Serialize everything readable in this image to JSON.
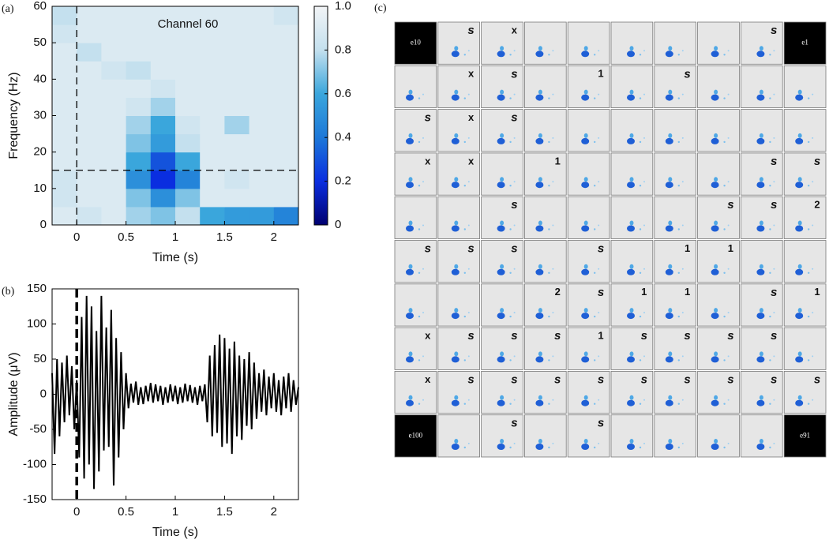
{
  "chart_data": [
    {
      "type": "heatmap",
      "panel_label": "(a)",
      "annotation": "Channel 60",
      "xlabel": "Time (s)",
      "ylabel": "Frequency (Hz)",
      "xlim": [
        -0.25,
        2.25
      ],
      "ylim": [
        0,
        60
      ],
      "xticks": [
        0,
        0.5,
        1,
        1.5,
        2
      ],
      "yticks": [
        0,
        10,
        20,
        30,
        40,
        50,
        60
      ],
      "vline": 0,
      "hline": 15,
      "x": [
        -0.125,
        0.125,
        0.375,
        0.625,
        0.875,
        1.125,
        1.375,
        1.625,
        1.875,
        2.125
      ],
      "y": [
        2.5,
        7.5,
        12.5,
        17.5,
        22.5,
        27.5,
        32.5,
        37.5,
        42.5,
        47.5,
        52.5,
        57.5
      ],
      "z": [
        [
          0.9,
          0.85,
          0.9,
          0.75,
          0.7,
          0.8,
          0.6,
          0.55,
          0.55,
          0.45
        ],
        [
          0.85,
          0.9,
          0.9,
          0.7,
          0.5,
          0.7,
          0.9,
          0.9,
          0.9,
          0.9
        ],
        [
          0.85,
          0.9,
          0.9,
          0.5,
          0.2,
          0.45,
          0.9,
          0.85,
          0.9,
          0.9
        ],
        [
          0.9,
          0.9,
          0.9,
          0.6,
          0.3,
          0.6,
          0.9,
          0.9,
          0.9,
          0.9
        ],
        [
          0.9,
          0.9,
          0.9,
          0.7,
          0.55,
          0.8,
          0.9,
          0.9,
          0.9,
          0.9
        ],
        [
          0.9,
          0.9,
          0.9,
          0.75,
          0.6,
          0.85,
          0.9,
          0.75,
          0.9,
          0.9
        ],
        [
          0.9,
          0.9,
          0.9,
          0.85,
          0.75,
          0.9,
          0.9,
          0.9,
          0.9,
          0.9
        ],
        [
          0.9,
          0.9,
          0.9,
          0.9,
          0.85,
          0.9,
          0.9,
          0.9,
          0.9,
          0.9
        ],
        [
          0.9,
          0.9,
          0.85,
          0.8,
          0.9,
          0.9,
          0.9,
          0.9,
          0.9,
          0.9
        ],
        [
          0.9,
          0.8,
          0.9,
          0.9,
          0.9,
          0.9,
          0.9,
          0.9,
          0.9,
          0.9
        ],
        [
          0.85,
          0.9,
          0.9,
          0.9,
          0.9,
          0.9,
          0.9,
          0.9,
          0.9,
          0.9
        ],
        [
          0.8,
          0.9,
          0.9,
          0.9,
          0.9,
          0.9,
          0.9,
          0.9,
          0.9,
          0.85
        ]
      ],
      "zlim": [
        0,
        1
      ],
      "colormap": [
        "#000070",
        "#0a2ee0",
        "#1d78d8",
        "#3aa6dc",
        "#c4e0ee",
        "#f2f4f6"
      ],
      "cticks": [
        0,
        0.2,
        0.4,
        0.6,
        0.8,
        {
          "value": 1,
          "label": "1.0"
        }
      ]
    },
    {
      "type": "line",
      "panel_label": "(b)",
      "xlabel": "Time (s)",
      "ylabel": "Amplitude (μV)",
      "color": "#000000",
      "xlim": [
        -0.25,
        2.25
      ],
      "ylim": [
        -150,
        150
      ],
      "xticks": [
        0,
        0.5,
        1,
        1.5,
        2
      ],
      "yticks": [
        -150,
        -100,
        -50,
        0,
        50,
        100,
        150
      ],
      "vline": 0,
      "x": [
        -0.25,
        -0.225,
        -0.2,
        -0.175,
        -0.15,
        -0.125,
        -0.1,
        -0.075,
        -0.05,
        -0.025,
        0,
        0.025,
        0.05,
        0.075,
        0.1,
        0.125,
        0.15,
        0.175,
        0.2,
        0.225,
        0.25,
        0.275,
        0.3,
        0.325,
        0.35,
        0.375,
        0.4,
        0.425,
        0.45,
        0.475,
        0.5,
        0.525,
        0.55,
        0.575,
        0.6,
        0.625,
        0.65,
        0.675,
        0.7,
        0.725,
        0.75,
        0.775,
        0.8,
        0.825,
        0.85,
        0.875,
        0.9,
        0.925,
        0.95,
        0.975,
        1,
        1.025,
        1.05,
        1.075,
        1.1,
        1.125,
        1.15,
        1.175,
        1.2,
        1.225,
        1.25,
        1.275,
        1.3,
        1.325,
        1.35,
        1.375,
        1.4,
        1.425,
        1.45,
        1.475,
        1.5,
        1.525,
        1.55,
        1.575,
        1.6,
        1.625,
        1.65,
        1.675,
        1.7,
        1.725,
        1.75,
        1.775,
        1.8,
        1.825,
        1.85,
        1.875,
        1.9,
        1.925,
        1.95,
        1.975,
        2,
        2.025,
        2.05,
        2.075,
        2.1,
        2.125,
        2.15,
        2.175,
        2.2,
        2.225,
        2.25
      ],
      "values": [
        30,
        -85,
        50,
        -60,
        45,
        -40,
        55,
        -30,
        40,
        -50,
        20,
        -90,
        110,
        -120,
        140,
        -100,
        125,
        -135,
        90,
        -110,
        140,
        -80,
        95,
        -75,
        120,
        -130,
        80,
        -90,
        60,
        -50,
        30,
        -20,
        15,
        -12,
        18,
        -15,
        10,
        -14,
        12,
        -10,
        16,
        -12,
        14,
        -10,
        12,
        -15,
        10,
        -12,
        14,
        -10,
        12,
        -14,
        10,
        -12,
        15,
        -10,
        13,
        -12,
        10,
        -15,
        12,
        -10,
        14,
        -40,
        55,
        -60,
        70,
        -55,
        85,
        -75,
        80,
        -70,
        65,
        -85,
        75,
        -60,
        55,
        -65,
        50,
        -45,
        60,
        -50,
        45,
        -35,
        30,
        -25,
        35,
        -30,
        25,
        -20,
        30,
        -25,
        20,
        -30,
        25,
        -20,
        30,
        -25,
        20,
        -15,
        10
      ]
    },
    {
      "type": "grid",
      "panel_label": "(c)",
      "cells": [
        [
          "e10",
          "s",
          "x",
          null,
          null,
          null,
          null,
          null,
          "s",
          "e1"
        ],
        [
          null,
          "x",
          "s",
          null,
          "1",
          null,
          "s",
          null,
          null,
          null
        ],
        [
          "s",
          "x",
          "s",
          null,
          null,
          null,
          null,
          null,
          null,
          null
        ],
        [
          "x",
          "x",
          null,
          "1",
          null,
          null,
          null,
          null,
          "s",
          "s"
        ],
        [
          null,
          null,
          "s",
          null,
          null,
          null,
          null,
          "s",
          "s",
          "2"
        ],
        [
          "s",
          "s",
          "s",
          null,
          "s",
          null,
          "1",
          "1",
          null,
          null
        ],
        [
          null,
          null,
          null,
          "2",
          "s",
          "1",
          "1",
          null,
          "s",
          "1"
        ],
        [
          "x",
          "s",
          "s",
          "s",
          "1",
          "s",
          "s",
          "s",
          "s",
          null
        ],
        [
          "x",
          "s",
          "s",
          "s",
          "s",
          "s",
          "s",
          "s",
          "s",
          "s"
        ],
        [
          "e100",
          null,
          "s",
          null,
          "s",
          null,
          null,
          null,
          null,
          "e91"
        ]
      ]
    }
  ]
}
